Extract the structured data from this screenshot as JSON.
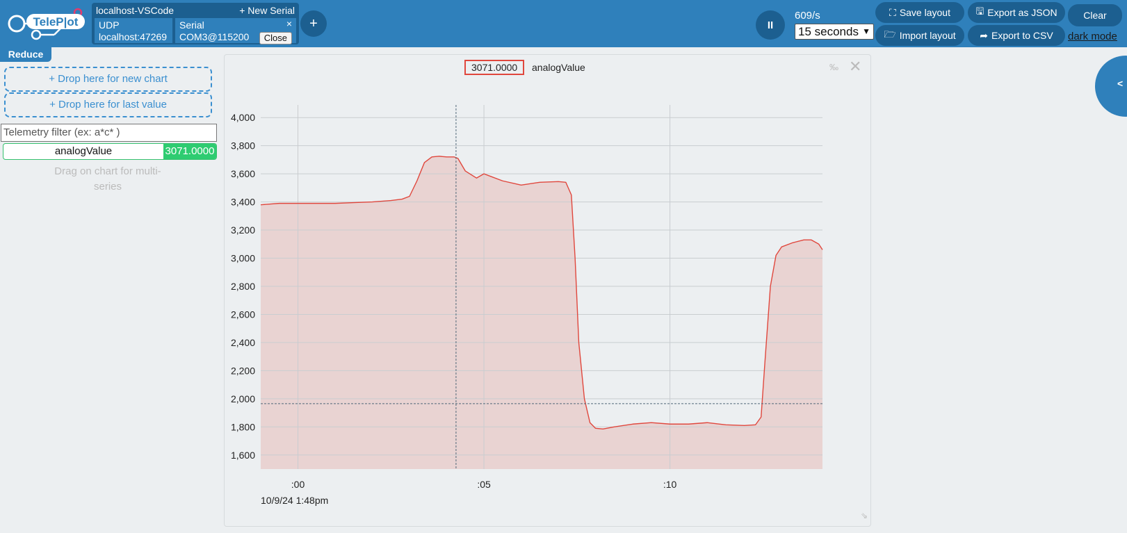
{
  "app": {
    "logo_text": "TeleP|ot",
    "accent_color": "#2f80bb",
    "accent_dark": "#1c5f90"
  },
  "connection": {
    "title": "localhost-VSCode",
    "new_serial_label": "+ New Serial",
    "udp": {
      "label": "UDP",
      "address": "localhost:47269"
    },
    "serial": {
      "label": "Serial",
      "port": "COM3@115200",
      "close_label": "Close",
      "remove_icon": "×"
    }
  },
  "toolbar": {
    "add_label": "+",
    "pause_label": "II",
    "rate": "609/s",
    "time_range": "15 seconds",
    "save_layout": "Save layout",
    "import_layout": "Import layout",
    "export_json": "Export as JSON",
    "export_csv": "Export to CSV",
    "clear": "Clear",
    "dark_mode": "dark mode"
  },
  "sidebar": {
    "reduce_label": "Reduce",
    "drop_new_chart": "+ Drop here for new chart",
    "drop_last_value": "+ Drop here for last value",
    "filter_placeholder": "Telemetry filter (ex: a*c* )",
    "telemetry": [
      {
        "name": "analogValue",
        "value": "3071.0000"
      }
    ],
    "hint": "Drag on chart for multi-series",
    "side_toggle": "<"
  },
  "chart_card": {
    "legend_value": "3071.0000",
    "legend_name": "analogValue",
    "percent_icon_text": "‰",
    "close_icon_text": "✕",
    "resize_icon_text": "⇘"
  },
  "chart_data": {
    "type": "line",
    "series": [
      {
        "name": "analogValue",
        "color": "#e0473d",
        "fill": "#e9d3d2",
        "x": [
          -1.0,
          -0.5,
          0.0,
          0.5,
          1.0,
          1.5,
          2.0,
          2.5,
          2.8,
          3.0,
          3.2,
          3.4,
          3.6,
          3.8,
          4.0,
          4.2,
          4.3,
          4.5,
          4.8,
          5.0,
          5.2,
          5.5,
          6.0,
          6.5,
          7.0,
          7.2,
          7.35,
          7.45,
          7.55,
          7.7,
          7.85,
          8.0,
          8.2,
          8.5,
          9.0,
          9.5,
          10.0,
          10.5,
          11.0,
          11.5,
          12.0,
          12.3,
          12.45,
          12.55,
          12.7,
          12.85,
          13.0,
          13.3,
          13.6,
          13.8,
          14.0,
          14.1
        ],
        "y": [
          3380,
          3390,
          3390,
          3390,
          3390,
          3395,
          3400,
          3410,
          3420,
          3440,
          3550,
          3680,
          3720,
          3725,
          3720,
          3720,
          3710,
          3620,
          3570,
          3600,
          3580,
          3550,
          3520,
          3540,
          3545,
          3540,
          3450,
          3000,
          2400,
          2000,
          1830,
          1790,
          1785,
          1800,
          1820,
          1830,
          1820,
          1820,
          1830,
          1815,
          1810,
          1815,
          1870,
          2250,
          2800,
          3020,
          3080,
          3110,
          3130,
          3130,
          3100,
          3060
        ]
      }
    ],
    "x_ticks": [
      ":00",
      ":05",
      ":10"
    ],
    "x_tick_values": [
      0,
      5,
      10
    ],
    "x_range": [
      -1.0,
      14.1
    ],
    "x_date_label": "10/9/24 1:48pm",
    "y_ticks": [
      "1,600",
      "1,800",
      "2,000",
      "2,200",
      "2,400",
      "2,600",
      "2,800",
      "3,000",
      "3,200",
      "3,400",
      "3,600",
      "3,800",
      "4,000"
    ],
    "y_tick_values": [
      1600,
      1800,
      2000,
      2200,
      2400,
      2600,
      2800,
      3000,
      3200,
      3400,
      3600,
      3800,
      4000
    ],
    "ylim": [
      1500,
      4090
    ],
    "cursor": {
      "x": 4.25,
      "y": 1965
    },
    "grid": true,
    "legend": "top-center"
  }
}
